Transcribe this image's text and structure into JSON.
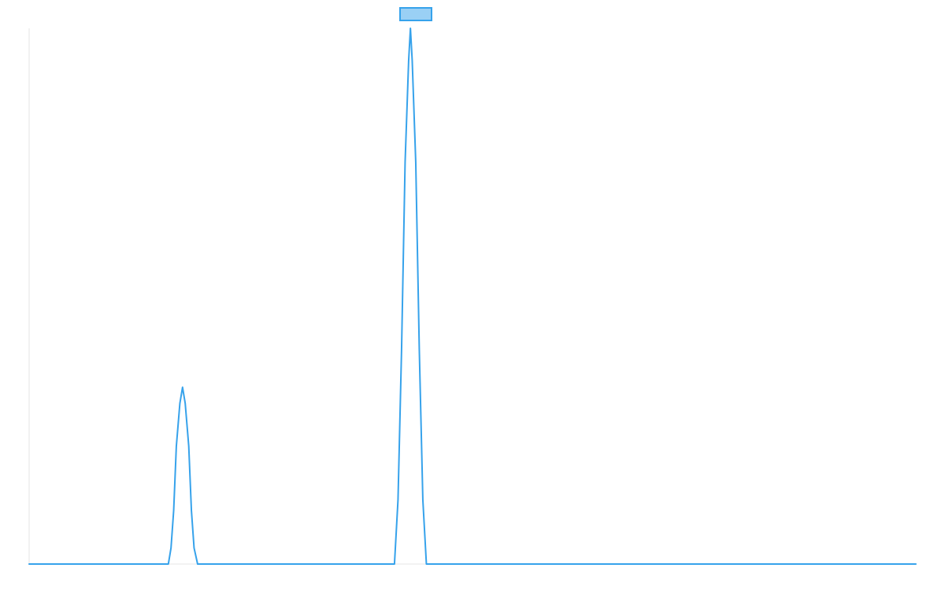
{
  "chart_data": {
    "type": "line",
    "title": "",
    "xlabel": "",
    "ylabel": "",
    "legend": {
      "position": "top-center",
      "show_text": false
    },
    "grid": false,
    "xlim": [
      0,
      1000
    ],
    "ylim": [
      0,
      100
    ],
    "series": [
      {
        "color": "#36a2eb",
        "fill_color": "#9ad0f5",
        "points": [
          [
            0,
            0
          ],
          [
            157,
            0
          ],
          [
            160,
            3
          ],
          [
            163,
            10
          ],
          [
            166,
            22
          ],
          [
            170,
            30
          ],
          [
            173,
            33
          ],
          [
            176,
            30
          ],
          [
            180,
            22
          ],
          [
            183,
            10
          ],
          [
            186,
            3
          ],
          [
            190,
            0
          ],
          [
            412,
            0
          ],
          [
            416,
            12
          ],
          [
            420,
            40
          ],
          [
            424,
            75
          ],
          [
            428,
            94
          ],
          [
            430,
            100
          ],
          [
            432,
            94
          ],
          [
            436,
            75
          ],
          [
            440,
            40
          ],
          [
            444,
            12
          ],
          [
            448,
            0
          ],
          [
            1000,
            0
          ]
        ]
      }
    ]
  }
}
